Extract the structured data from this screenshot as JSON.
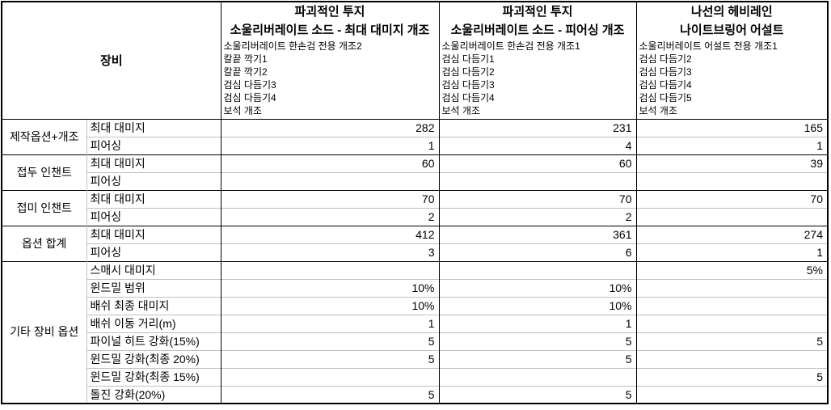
{
  "table": {
    "corner_label": "장비",
    "columns": [
      {
        "title1": "파괴적인 투지",
        "title2": "소울리버레이트 소드 - 최대 대미지 개조",
        "mods": [
          "소울리버레이트 한손검 전용 개조2",
          "칼끝 깍기1",
          "칼끝 깍기2",
          "검심 다듬기3",
          "검심 다듬기4",
          "보석 개조"
        ]
      },
      {
        "title1": "파괴적인 투지",
        "title2": "소울리버레이트 소드 - 피어싱 개조",
        "mods": [
          "소울리버레이트 한손검 전용 개조1",
          "검심 다듬기1",
          "검심 다듬기2",
          "검심 다듬기3",
          "검심 다듬기4",
          "보석 개조"
        ]
      },
      {
        "title1": "나선의 헤비레인",
        "title2": "나이트브링어 어설트",
        "mods": [
          "소울리버레이트 어설트 전용 개조1",
          "검심 다듬기2",
          "검심 다듬기3",
          "검심 다듬기4",
          "검심 다듬기5",
          "보석 개조"
        ]
      }
    ],
    "groups": [
      {
        "label": "제작옵션+개조",
        "rows": [
          {
            "label": "최대 대미지",
            "values": [
              "282",
              "231",
              "165"
            ]
          },
          {
            "label": "피어싱",
            "values": [
              "1",
              "4",
              "1"
            ]
          }
        ]
      },
      {
        "label": "접두 인챈트",
        "rows": [
          {
            "label": "최대 대미지",
            "values": [
              "60",
              "60",
              "39"
            ]
          },
          {
            "label": "피어싱",
            "values": [
              "",
              "",
              ""
            ]
          }
        ]
      },
      {
        "label": "접미 인챈트",
        "rows": [
          {
            "label": "최대 대미지",
            "values": [
              "70",
              "70",
              "70"
            ]
          },
          {
            "label": "피어싱",
            "values": [
              "2",
              "2",
              ""
            ]
          }
        ]
      },
      {
        "label": "옵션 합계",
        "rows": [
          {
            "label": "최대 대미지",
            "values": [
              "412",
              "361",
              "274"
            ]
          },
          {
            "label": "피어싱",
            "values": [
              "3",
              "6",
              "1"
            ]
          }
        ]
      },
      {
        "label": "기타 장비 옵션",
        "rows": [
          {
            "label": "스매시 대미지",
            "values": [
              "",
              "",
              "5%"
            ]
          },
          {
            "label": "윈드밀 범위",
            "values": [
              "10%",
              "10%",
              ""
            ]
          },
          {
            "label": "배쉬 최종 대미지",
            "values": [
              "10%",
              "10%",
              ""
            ]
          },
          {
            "label": "배쉬 이동 거리(m)",
            "values": [
              "1",
              "1",
              ""
            ]
          },
          {
            "label": "파이널 히트 강화(15%)",
            "values": [
              "5",
              "5",
              "5"
            ]
          },
          {
            "label": "윈드밀 강화(최종 20%)",
            "values": [
              "5",
              "5",
              ""
            ]
          },
          {
            "label": "윈드밀 강화(최종 15%)",
            "values": [
              "",
              "",
              "5"
            ]
          },
          {
            "label": "돌진 강화(20%)",
            "values": [
              "5",
              "5",
              ""
            ]
          }
        ]
      }
    ],
    "colors": {
      "border_strong": "#000000",
      "border_light": "#bfbfbf",
      "text": "#000000",
      "background": "#ffffff"
    }
  }
}
